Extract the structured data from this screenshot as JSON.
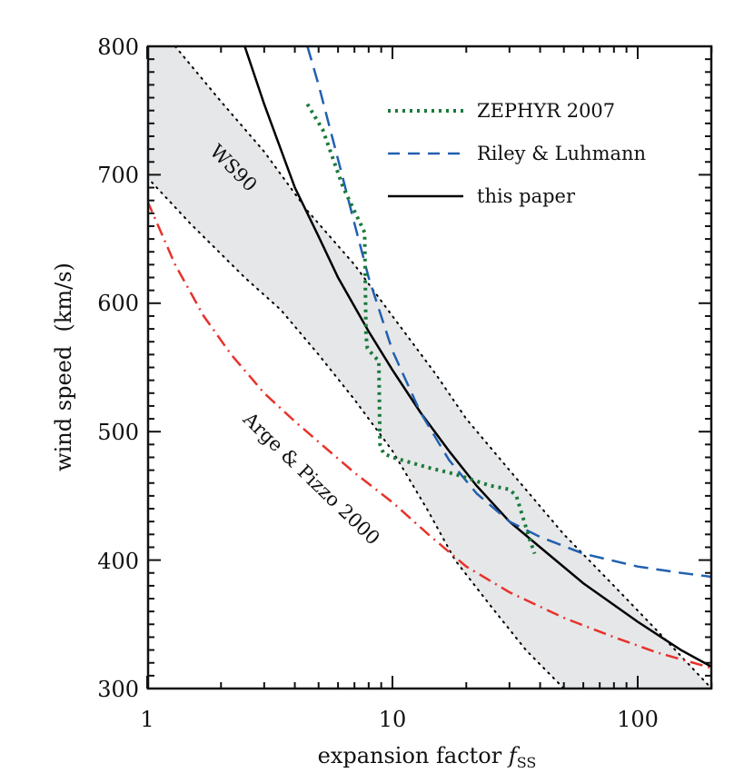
{
  "chart_data": {
    "type": "line",
    "title": "",
    "xlabel": "expansion factor f_ss",
    "xlabel_main": "expansion factor ",
    "xlabel_italic": "f",
    "xlabel_sub": "SS",
    "ylabel": "wind speed  (km/s)",
    "xscale": "log",
    "xlim": [
      1,
      200
    ],
    "ylim": [
      300,
      800
    ],
    "x_ticks": [
      1,
      10,
      100
    ],
    "x_tick_labels": [
      "1",
      "10",
      "100"
    ],
    "y_ticks": [
      300,
      400,
      500,
      600,
      700,
      800
    ],
    "y_tick_labels": [
      "300",
      "400",
      "500",
      "600",
      "700",
      "800"
    ],
    "grid": false,
    "legend_position": "upper right",
    "series": [
      {
        "name": "ZEPHYR 2007",
        "style": "dotted",
        "color": "#1a7a3a",
        "x": [
          4.5,
          5.2,
          6.3,
          7.7,
          7.8,
          7.9,
          8.3,
          8.8,
          8.9,
          9.2,
          10.0,
          14.0,
          18.0,
          25.0,
          30.0,
          32.0,
          36.0,
          38.0
        ],
        "y": [
          755,
          735,
          690,
          655,
          575,
          565,
          560,
          555,
          490,
          483,
          480,
          472,
          467,
          458,
          455,
          450,
          418,
          405
        ]
      },
      {
        "name": "Riley & Luhmann",
        "style": "dashed",
        "color": "#2060b0",
        "x": [
          4.5,
          5.0,
          6.0,
          7.0,
          8.0,
          10.0,
          13.0,
          17.0,
          22.0,
          30.0,
          40.0,
          60.0,
          100.0,
          150.0,
          200.0
        ],
        "y": [
          800,
          770,
          712,
          662,
          620,
          563,
          515,
          478,
          452,
          430,
          418,
          405,
          395,
          390,
          387
        ]
      },
      {
        "name": "this paper",
        "style": "solid",
        "color": "#000000",
        "x": [
          2.5,
          3.0,
          4.0,
          5.0,
          6.0,
          8.0,
          10.0,
          13.0,
          17.0,
          22.0,
          30.0,
          40.0,
          60.0,
          100.0,
          150.0,
          200.0
        ],
        "y": [
          800,
          755,
          690,
          652,
          620,
          578,
          548,
          515,
          485,
          458,
          430,
          410,
          382,
          352,
          330,
          317
        ]
      },
      {
        "name": "Arge & Pizzo 2000",
        "style": "dash-dot",
        "color": "#e8322a",
        "x": [
          1.0,
          1.3,
          1.7,
          2.2,
          3.0,
          4.0,
          5.0,
          7.0,
          10.0,
          14.0,
          20.0,
          30.0,
          50.0,
          80.0,
          120.0,
          200.0
        ],
        "y": [
          680,
          630,
          590,
          560,
          530,
          508,
          492,
          468,
          445,
          420,
          395,
          375,
          355,
          340,
          328,
          316
        ]
      },
      {
        "name": "WS90 upper bound",
        "style": "dotted-thin",
        "color": "#000000",
        "x": [
          1.3,
          2.0,
          3.0,
          4.5,
          7.0,
          10.0,
          15.0,
          20.0,
          30.0,
          50.0,
          80.0,
          120.0,
          200.0
        ],
        "y": [
          800,
          757,
          718,
          672,
          630,
          590,
          545,
          510,
          470,
          420,
          380,
          345,
          300
        ]
      },
      {
        "name": "WS90 lower bound",
        "style": "dotted-thin",
        "color": "#000000",
        "x": [
          1.0,
          1.5,
          2.5,
          3.5,
          5.0,
          7.0,
          10.0,
          14.0,
          18.0,
          25.0,
          35.0,
          50.0
        ],
        "y": [
          698,
          662,
          620,
          595,
          560,
          525,
          485,
          438,
          400,
          365,
          330,
          300
        ]
      }
    ],
    "shaded_region": {
      "name": "WS90",
      "color": "#e6e7e9",
      "between": [
        "WS90 upper bound",
        "WS90 lower bound"
      ]
    },
    "annotations": [
      {
        "text": "WS90",
        "x": 1.95,
        "y": 670,
        "rotation": 45
      },
      {
        "text": "Arge & Pizzo 2000",
        "x": 3.6,
        "y": 470,
        "rotation": 44
      }
    ],
    "legend": [
      {
        "label": "ZEPHYR 2007",
        "style": "dotted",
        "color": "#1a7a3a"
      },
      {
        "label": "Riley & Luhmann",
        "style": "dashed",
        "color": "#2060b0"
      },
      {
        "label": "this paper",
        "style": "solid",
        "color": "#000000"
      }
    ]
  }
}
